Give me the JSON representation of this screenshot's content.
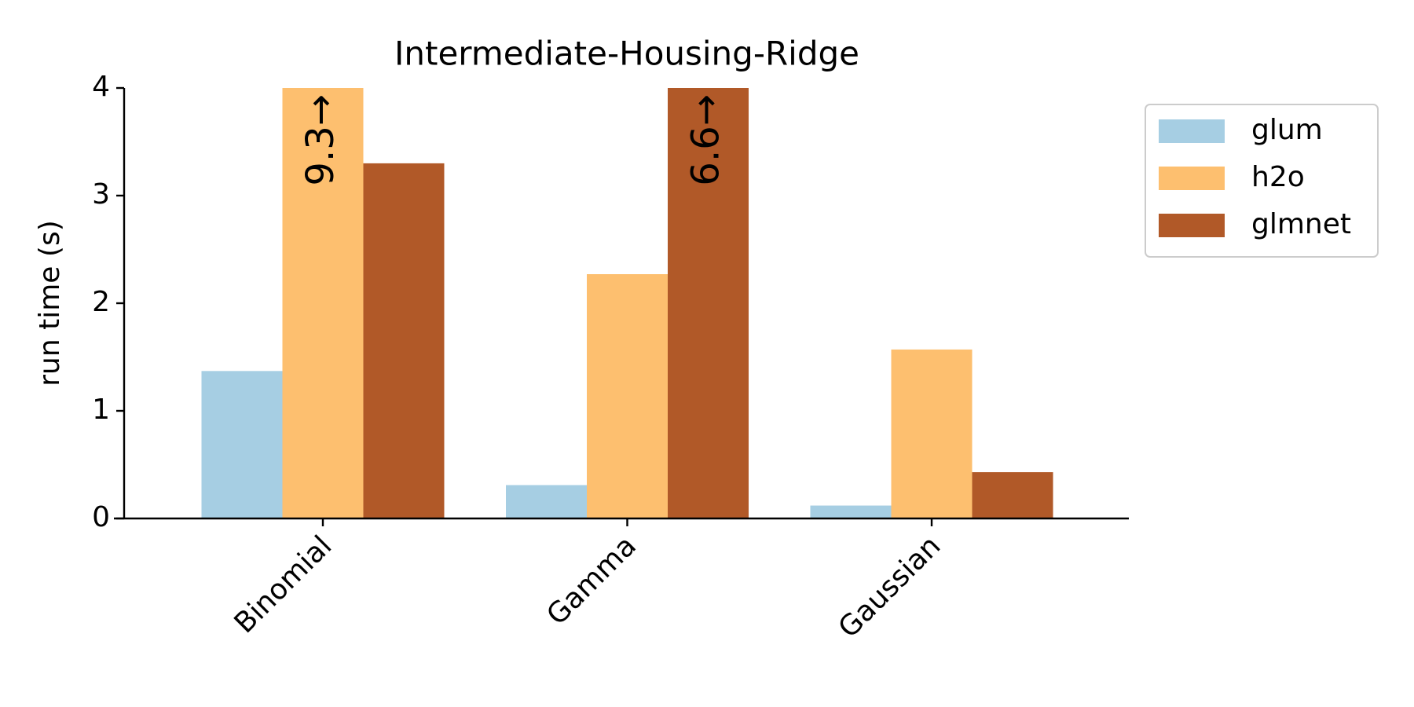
{
  "chart_data": {
    "type": "bar",
    "title": "Intermediate-Housing-Ridge",
    "y_label": "run time (s)",
    "categories": [
      "Binomial",
      "Gamma",
      "Gaussian"
    ],
    "series": [
      {
        "name": "glum",
        "color": "#a6cee3",
        "values": [
          1.37,
          0.31,
          0.12
        ]
      },
      {
        "name": "h2o",
        "color": "#fdbf6f",
        "values": [
          9.3,
          2.27,
          1.57
        ],
        "value_labels": [
          "9.3→",
          null,
          null
        ]
      },
      {
        "name": "glmnet",
        "color": "#b15928",
        "values": [
          3.3,
          6.6,
          0.43
        ],
        "value_labels": [
          null,
          "6.6→",
          null
        ]
      }
    ],
    "ylim": [
      0,
      4
    ],
    "yticks": [
      0,
      1,
      2,
      3,
      4
    ],
    "grid": false,
    "legend": "outside right"
  }
}
